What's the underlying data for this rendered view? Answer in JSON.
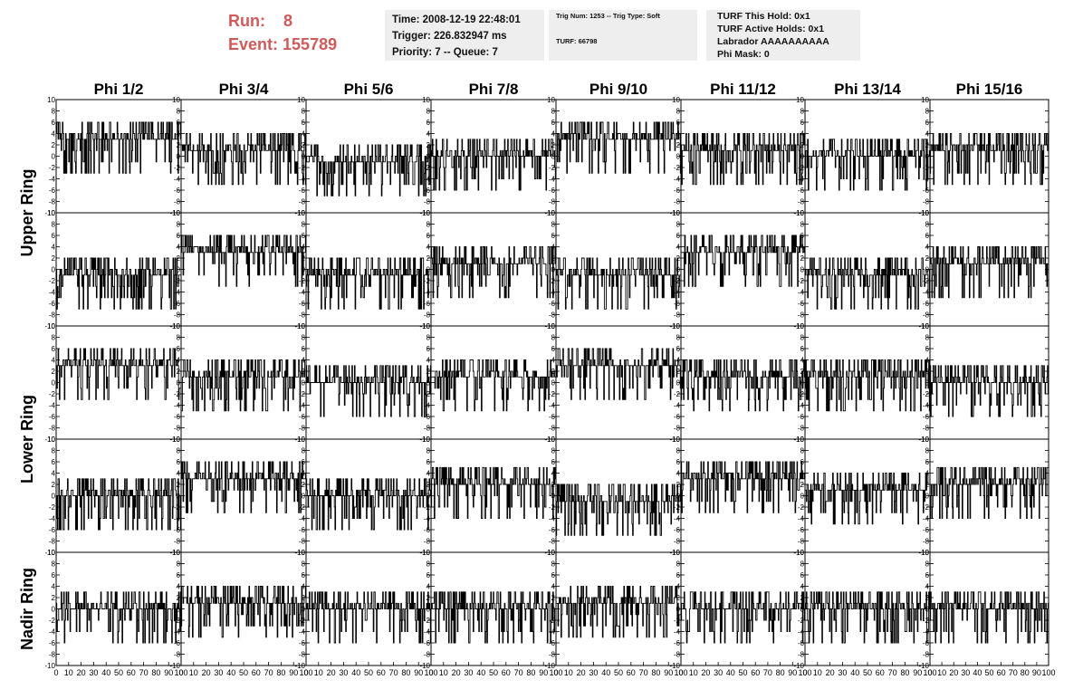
{
  "header": {
    "run_label": "Run:",
    "run_value": "8",
    "event_label": "Event:",
    "event_value": "155789",
    "colors": {
      "run_text": "#d05a5a",
      "panel_bg": "#eeeeee"
    }
  },
  "info_panel_1": {
    "time": "Time: 2008-12-19 22:48:01",
    "trigger": "Trigger: 226.832947 ms",
    "priority": "Priority: 7 -- Queue: 7"
  },
  "info_panel_2": {
    "trig": "Trig Num: 1253 -- Trig Type: Soft",
    "turf": "TURF: 66798"
  },
  "info_panel_3": {
    "hold": "TURF This Hold: 0x1",
    "active_holds": "TURF Active Holds: 0x1",
    "labrador": "Labrador AAAAAAAAAA",
    "phi_mask": "Phi Mask: 0"
  },
  "chart_data": {
    "type": "line",
    "column_titles": [
      "Phi 1/2",
      "Phi 3/4",
      "Phi 5/6",
      "Phi 7/8",
      "Phi 9/10",
      "Phi 11/12",
      "Phi 13/14",
      "Phi 15/16"
    ],
    "row_titles": [
      {
        "label": "Upper Ring",
        "rows": [
          0,
          1
        ]
      },
      {
        "label": "Lower Ring",
        "rows": [
          2,
          3
        ]
      },
      {
        "label": "Nadir Ring",
        "rows": [
          4
        ]
      }
    ],
    "xlim": [
      0,
      100
    ],
    "ylim": [
      -10,
      10
    ],
    "x_ticks": [
      "0",
      "10",
      "20",
      "30",
      "40",
      "50",
      "60",
      "70",
      "80",
      "90",
      "100"
    ],
    "y_ticks": [
      "10",
      "8",
      "6",
      "4",
      "2",
      "0",
      "-2",
      "-4",
      "-6",
      "-8",
      "-10"
    ],
    "panel_levels": [
      [
        3,
        1,
        -1,
        0,
        3,
        1,
        0,
        1
      ],
      [
        -1,
        3,
        -1,
        1,
        -1,
        3,
        -1,
        1
      ],
      [
        3,
        1,
        0,
        1,
        3,
        1,
        1,
        0
      ],
      [
        0,
        3,
        0,
        2,
        -1,
        3,
        1,
        2
      ],
      [
        0,
        1,
        0,
        0,
        1,
        0,
        0,
        0
      ]
    ],
    "grid": false,
    "legend": "none"
  }
}
